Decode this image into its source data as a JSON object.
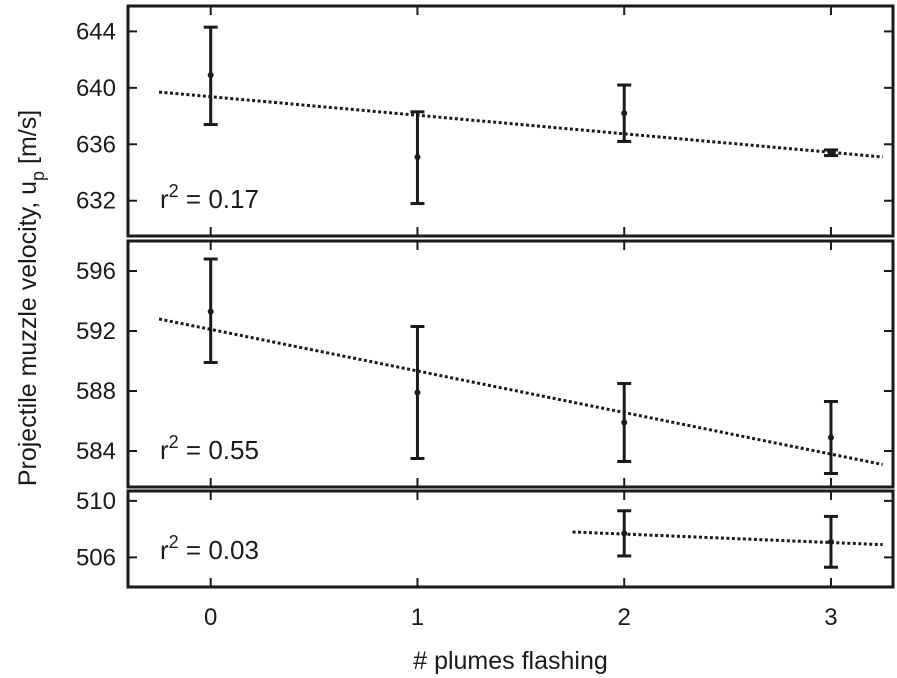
{
  "chart_data": {
    "type": "scatter",
    "xlabel": "# plumes flashing",
    "ylabel_main": "Projectile muzzle velocity, u",
    "ylabel_sub": "p",
    "ylabel_unit": " [m/s]",
    "xlim": [
      -0.4,
      3.3
    ],
    "xticks": [
      0,
      1,
      2,
      3
    ],
    "grid": false,
    "panels": [
      {
        "ylim": [
          629.5,
          645.8
        ],
        "yticks": [
          632,
          636,
          640,
          644
        ],
        "r2_prefix": "r",
        "r2_sup": "2",
        "r2_value": " = 0.17",
        "points": [
          {
            "x": 0,
            "y": 640.9,
            "err_low": 637.4,
            "err_high": 644.3
          },
          {
            "x": 1,
            "y": 635.1,
            "err_low": 631.8,
            "err_high": 638.3
          },
          {
            "x": 2,
            "y": 638.2,
            "err_low": 636.2,
            "err_high": 640.2
          },
          {
            "x": 3,
            "y": 635.4,
            "err_low": 635.2,
            "err_high": 635.6
          }
        ],
        "fit": {
          "x": [
            -0.25,
            3.25
          ],
          "y": [
            639.7,
            635.1
          ]
        }
      },
      {
        "ylim": [
          581.6,
          598.0
        ],
        "yticks": [
          584,
          588,
          592,
          596
        ],
        "r2_prefix": "r",
        "r2_sup": "2",
        "r2_value": " = 0.55",
        "points": [
          {
            "x": 0,
            "y": 593.3,
            "err_low": 589.9,
            "err_high": 596.8
          },
          {
            "x": 1,
            "y": 587.9,
            "err_low": 583.5,
            "err_high": 592.3
          },
          {
            "x": 2,
            "y": 585.9,
            "err_low": 583.3,
            "err_high": 588.5
          },
          {
            "x": 3,
            "y": 584.9,
            "err_low": 582.5,
            "err_high": 587.3
          }
        ],
        "fit": {
          "x": [
            -0.25,
            3.25
          ],
          "y": [
            592.8,
            583.1
          ]
        }
      },
      {
        "ylim": [
          503.9,
          510.7
        ],
        "yticks": [
          506,
          510
        ],
        "r2_prefix": "r",
        "r2_sup": "2",
        "r2_value": " = 0.03",
        "points": [
          {
            "x": 2,
            "y": 507.7,
            "err_low": 506.1,
            "err_high": 509.3
          },
          {
            "x": 3,
            "y": 507.1,
            "err_low": 505.3,
            "err_high": 508.9
          }
        ],
        "fit": {
          "x": [
            1.75,
            3.25
          ],
          "y": [
            507.8,
            506.9
          ]
        }
      }
    ]
  }
}
